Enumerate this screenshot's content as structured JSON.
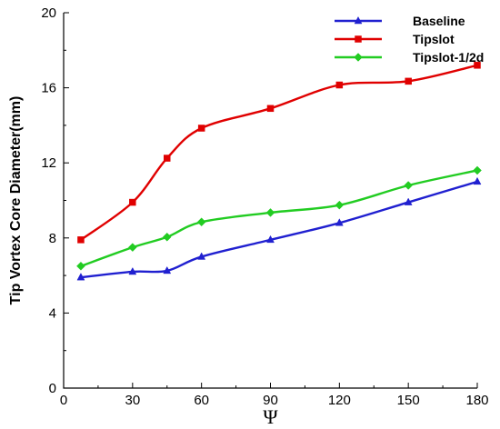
{
  "chart_data": {
    "type": "line",
    "xlabel": "Ψ",
    "ylabel": "Tip Vortex Core Diameter(mm)",
    "xlim": [
      0,
      180
    ],
    "ylim": [
      0,
      20
    ],
    "xticks": [
      0,
      30,
      60,
      90,
      120,
      150,
      180
    ],
    "yticks": [
      0,
      4,
      8,
      12,
      16,
      20
    ],
    "legend_position": "top-right",
    "series": [
      {
        "name": "Baseline",
        "color": "#2020d0",
        "marker": "triangle",
        "x": [
          7.5,
          30,
          45,
          60,
          90,
          120,
          150,
          180
        ],
        "y": [
          5.9,
          6.2,
          6.25,
          7.0,
          7.9,
          8.8,
          9.9,
          11.0
        ]
      },
      {
        "name": "Tipslot",
        "color": "#e00000",
        "marker": "square",
        "x": [
          7.5,
          30,
          45,
          60,
          90,
          120,
          150,
          180
        ],
        "y": [
          7.9,
          9.9,
          12.25,
          13.85,
          14.9,
          16.15,
          16.35,
          17.2
        ]
      },
      {
        "name": "Tipslot-1/2d",
        "color": "#22cc22",
        "marker": "diamond",
        "x": [
          7.5,
          30,
          45,
          60,
          90,
          120,
          150,
          180
        ],
        "y": [
          6.5,
          7.5,
          8.05,
          8.85,
          9.35,
          9.75,
          10.8,
          11.6
        ]
      }
    ]
  }
}
